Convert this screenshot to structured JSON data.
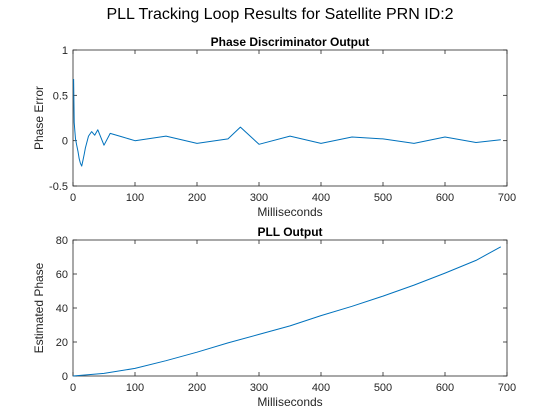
{
  "figure": {
    "suptitle": "PLL Tracking Loop Results for Satellite PRN ID:2"
  },
  "colors": {
    "line": "#0072BD",
    "axis": "#262626",
    "background": "#ffffff"
  },
  "chart_data": [
    {
      "type": "line",
      "title": "Phase Discriminator Output",
      "xlabel": "Milliseconds",
      "ylabel": "Phase Error",
      "xlim": [
        0,
        700
      ],
      "ylim": [
        -0.5,
        1
      ],
      "xticks": [
        "0",
        "100",
        "200",
        "300",
        "400",
        "500",
        "600",
        "700"
      ],
      "yticks": [
        "-0.5",
        "0",
        "0.5",
        "1"
      ],
      "grid": false,
      "series": [
        {
          "x": [
            1,
            2,
            3,
            4,
            6,
            8,
            10,
            12,
            14,
            16,
            18,
            20,
            25,
            30,
            35,
            40,
            50,
            60,
            80,
            100,
            150,
            200,
            250,
            270,
            300,
            350,
            400,
            450,
            500,
            550,
            600,
            650,
            690
          ],
          "y": [
            0.68,
            0.2,
            0.1,
            0.02,
            -0.05,
            -0.12,
            -0.2,
            -0.25,
            -0.28,
            -0.22,
            -0.15,
            -0.08,
            0.05,
            0.1,
            0.06,
            0.12,
            -0.05,
            0.08,
            0.04,
            0.0,
            0.05,
            -0.03,
            0.02,
            0.15,
            -0.04,
            0.05,
            -0.03,
            0.04,
            0.02,
            -0.03,
            0.04,
            -0.02,
            0.01
          ]
        }
      ]
    },
    {
      "type": "line",
      "title": "PLL Output",
      "xlabel": "Milliseconds",
      "ylabel": "Estimated Phase",
      "xlim": [
        0,
        700
      ],
      "ylim": [
        0,
        80
      ],
      "xticks": [
        "0",
        "100",
        "200",
        "300",
        "400",
        "500",
        "600",
        "700"
      ],
      "yticks": [
        "0",
        "20",
        "40",
        "60",
        "80"
      ],
      "grid": false,
      "series": [
        {
          "x": [
            0,
            50,
            100,
            150,
            200,
            250,
            300,
            350,
            400,
            450,
            500,
            550,
            600,
            650,
            690
          ],
          "y": [
            0,
            1.5,
            4.5,
            9,
            14,
            19.5,
            24.5,
            29.5,
            35.5,
            41,
            47,
            53.5,
            60.5,
            68,
            76
          ]
        }
      ]
    }
  ]
}
